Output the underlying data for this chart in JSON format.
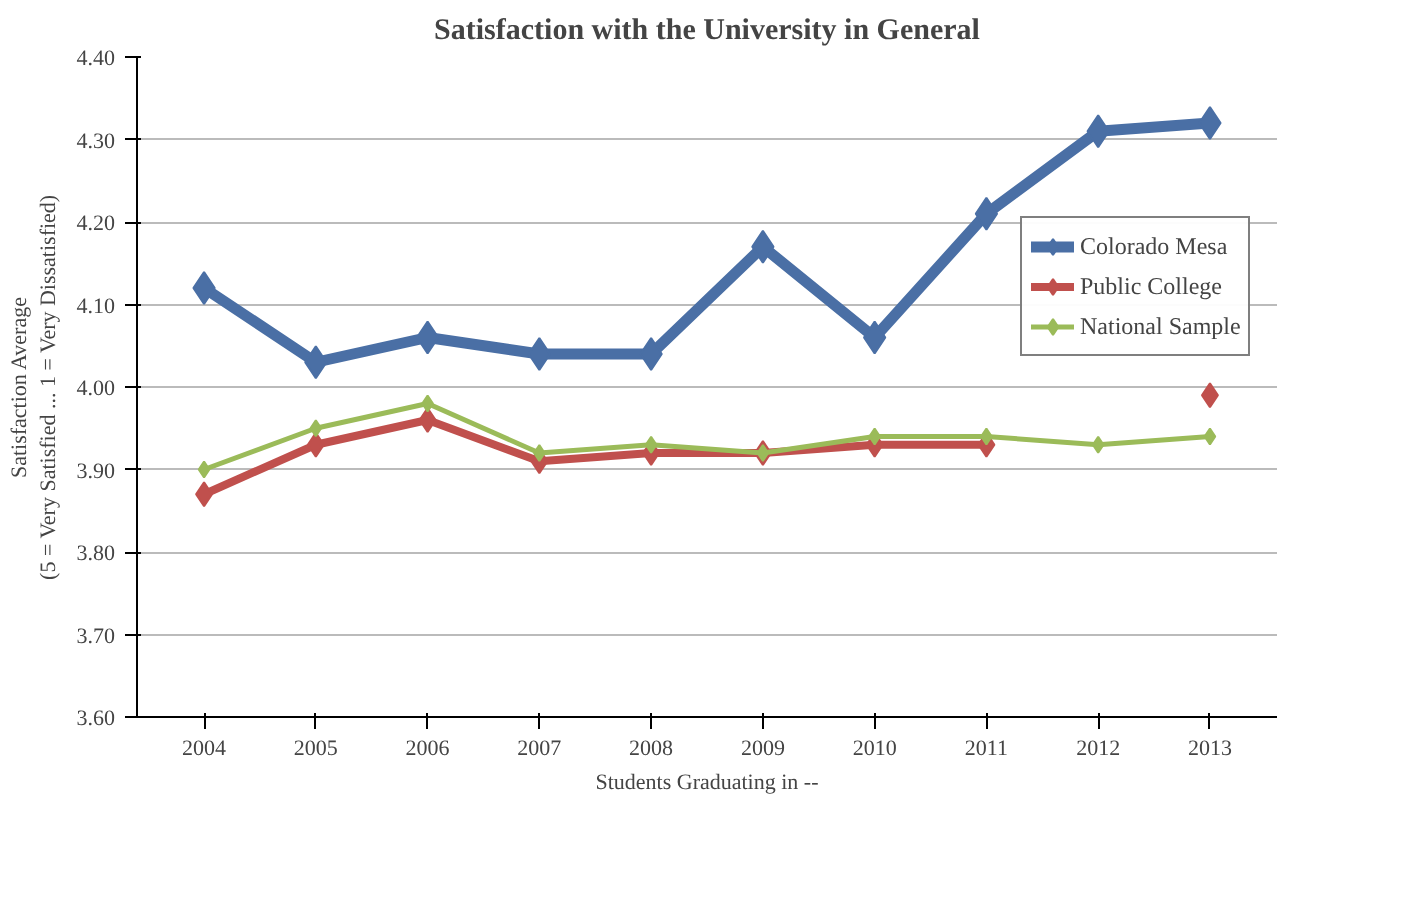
{
  "chart_data": {
    "type": "line",
    "title": "Satisfaction with the University in General",
    "xlabel": "Students Graduating in --",
    "ylabel": "Satisfaction Average\n(5 = Very Satisfied ... 1 = Very Dissatisfied)",
    "categories": [
      "2004",
      "2005",
      "2006",
      "2007",
      "2008",
      "2009",
      "2010",
      "2011",
      "2012",
      "2013"
    ],
    "series": [
      {
        "name": "Colorado Mesa",
        "color": "#4a6fa5",
        "values": [
          4.12,
          4.03,
          4.06,
          4.04,
          4.04,
          4.17,
          4.06,
          4.21,
          4.31,
          4.32
        ]
      },
      {
        "name": "Public College",
        "color": "#c0504d",
        "values": [
          3.87,
          3.93,
          3.96,
          3.91,
          3.92,
          3.92,
          3.93,
          3.93,
          null,
          3.99
        ]
      },
      {
        "name": "National Sample",
        "color": "#9bbb59",
        "values": [
          3.9,
          3.95,
          3.98,
          3.92,
          3.93,
          3.92,
          3.94,
          3.94,
          3.93,
          3.94
        ]
      }
    ],
    "ylim": [
      3.6,
      4.4
    ],
    "yticks": [
      {
        "value": 3.6,
        "label": "3.60"
      },
      {
        "value": 3.7,
        "label": "3.70"
      },
      {
        "value": 3.8,
        "label": "3.80"
      },
      {
        "value": 3.9,
        "label": "3.90"
      },
      {
        "value": 4.0,
        "label": "4.00"
      },
      {
        "value": 4.1,
        "label": "4.10"
      },
      {
        "value": 4.2,
        "label": "4.20"
      },
      {
        "value": 4.3,
        "label": "4.30"
      },
      {
        "value": 4.4,
        "label": "4.40"
      }
    ],
    "grid": "y",
    "legend": "right",
    "marker": "diamond",
    "line_style": "solid"
  }
}
